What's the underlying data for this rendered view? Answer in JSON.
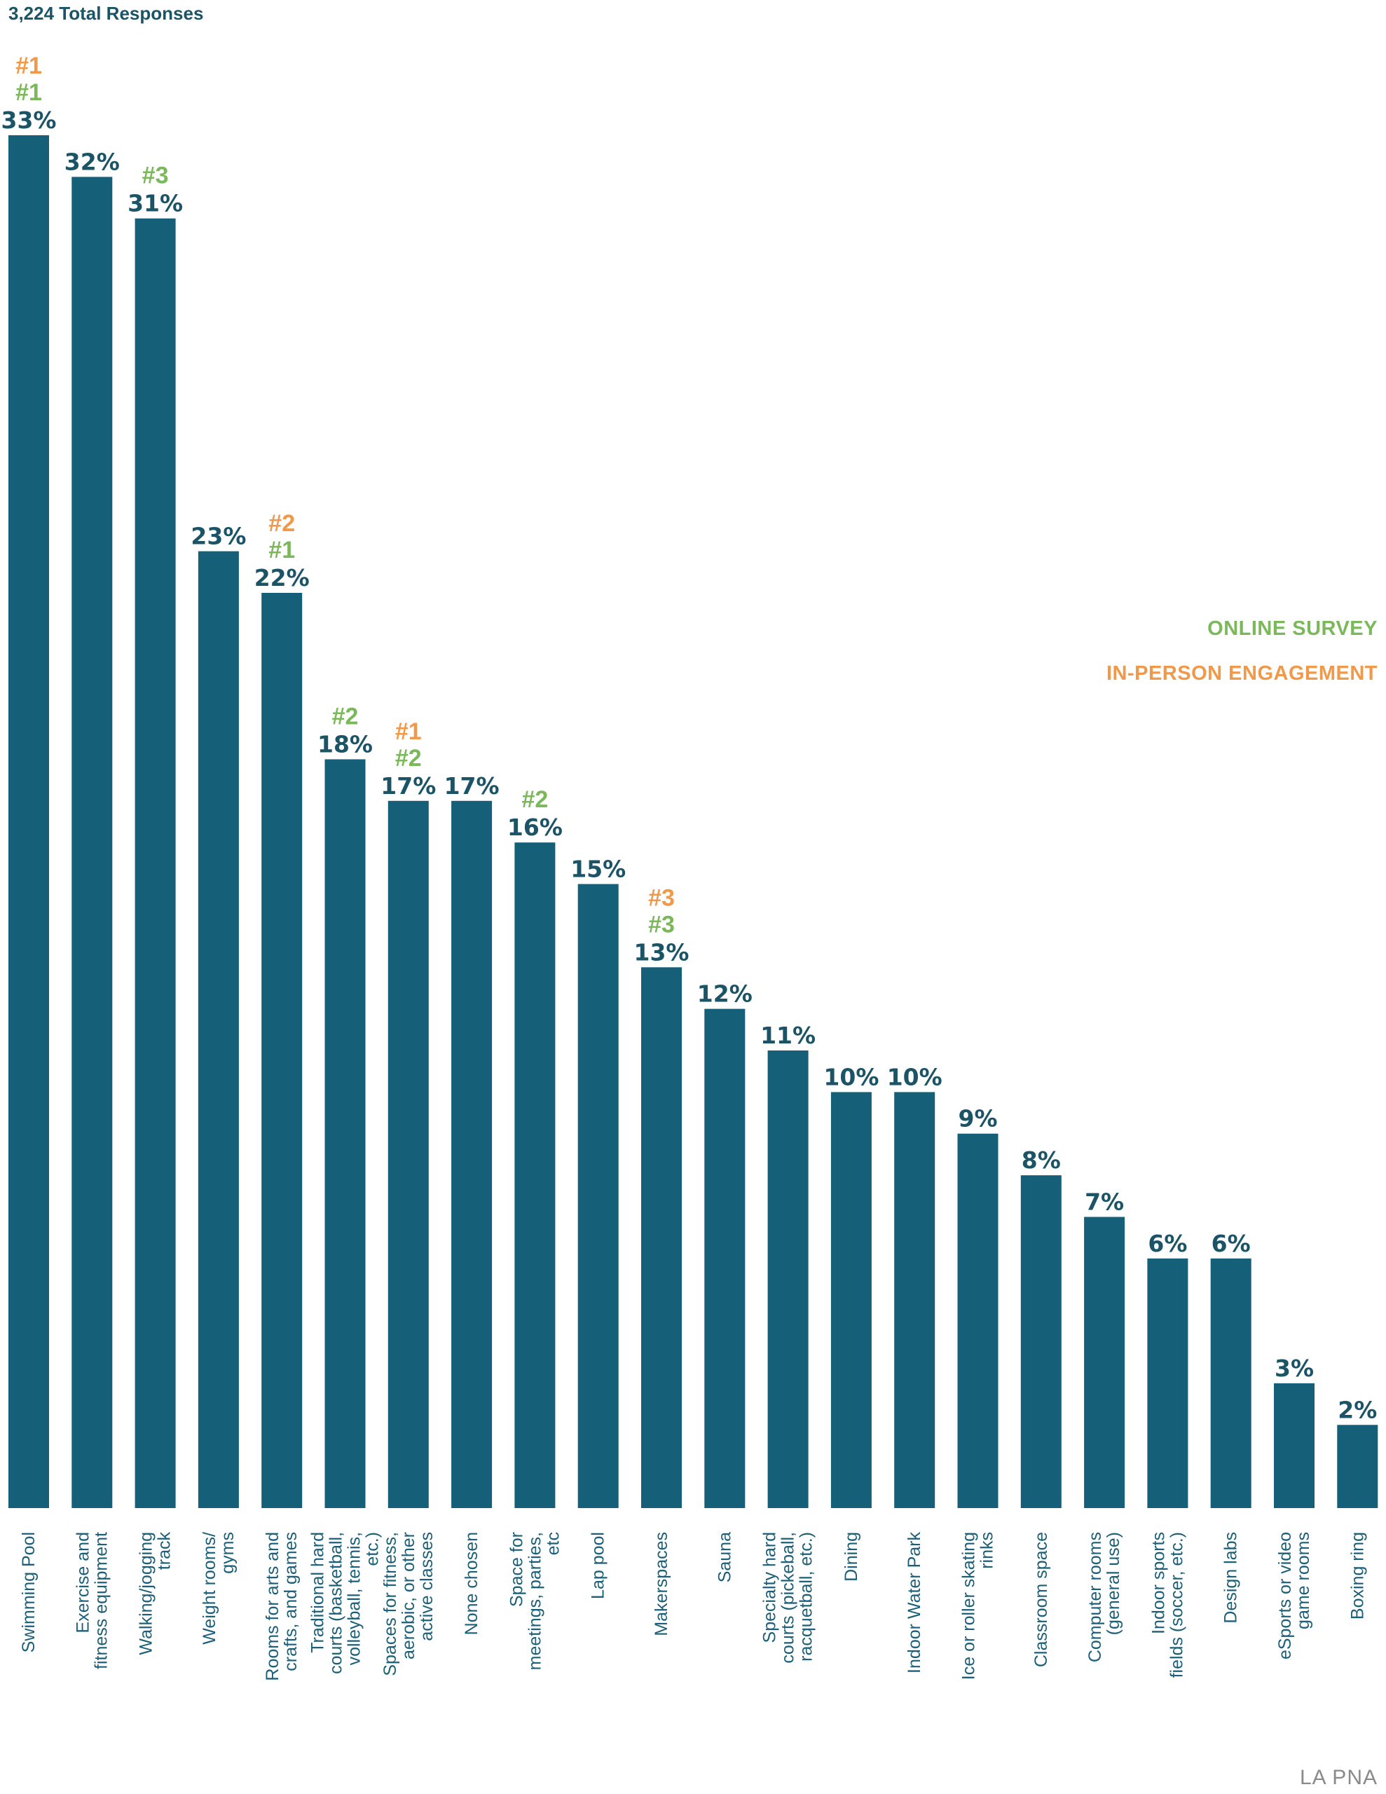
{
  "colors": {
    "bar": "#155f78",
    "value_label": "#1b5466",
    "online": "#7ab85a",
    "in_person": "#f0994a",
    "source": "#8a8a8a",
    "total": "#1b5466"
  },
  "header": {
    "total_responses": "3,224 Total Responses"
  },
  "legend": {
    "online": "ONLINE SURVEY",
    "in_person": "IN-PERSON ENGAGEMENT"
  },
  "footer": {
    "source": "LA PNA"
  },
  "chart_data": {
    "type": "bar",
    "title": "",
    "xlabel": "",
    "ylabel": "",
    "ylim": [
      0,
      33
    ],
    "categories": [
      "Swimming Pool",
      "Exercise and fitness equipment",
      "Walking/jogging track",
      "Weight rooms/ gyms",
      "Rooms for arts and crafts, and games",
      "Traditional hard courts (basketball, volleyball, tennis, etc.)",
      "Spaces for fitness, aerobic, or other active classes",
      "None chosen",
      "Space for meetings, parties, etc",
      "Lap pool",
      "Makerspaces",
      "Sauna",
      "Specialty hard courts (pickeball, racquetball, etc.)",
      "Dining",
      "Indoor Water Park",
      "Ice or roller skating rinks",
      "Classroom space",
      "Computer rooms (general use)",
      "Indoor sports fields (soccer, etc.)",
      "Design labs",
      "eSports or video game rooms",
      "Boxing ring"
    ],
    "category_lines": [
      [
        "Swimming Pool"
      ],
      [
        "Exercise and",
        "fitness equipment"
      ],
      [
        "Walking/jogging",
        "track"
      ],
      [
        "Weight rooms/",
        "gyms"
      ],
      [
        "Rooms for arts and",
        "crafts, and games"
      ],
      [
        "Traditional hard",
        "courts (basketball,",
        "volleyball, tennis,",
        "etc.)"
      ],
      [
        "Spaces for fitness,",
        "aerobic, or other",
        "active classes"
      ],
      [
        "None chosen"
      ],
      [
        "Space for",
        "meetings, parties,",
        "etc"
      ],
      [
        "Lap pool"
      ],
      [
        "Makerspaces"
      ],
      [
        "Sauna"
      ],
      [
        "Specialty hard",
        "courts (pickeball,",
        "racquetball, etc.)"
      ],
      [
        "Dining"
      ],
      [
        "Indoor Water Park"
      ],
      [
        "Ice or roller skating",
        "rinks"
      ],
      [
        "Classroom space"
      ],
      [
        "Computer rooms",
        "(general use)"
      ],
      [
        "Indoor sports",
        "fields (soccer, etc.)"
      ],
      [
        "Design labs"
      ],
      [
        "eSports or video",
        "game rooms"
      ],
      [
        "Boxing ring"
      ]
    ],
    "values": [
      33,
      32,
      31,
      23,
      22,
      18,
      17,
      17,
      16,
      15,
      13,
      12,
      11,
      10,
      10,
      9,
      8,
      7,
      6,
      6,
      3,
      2
    ],
    "labels": [
      "33%",
      "32%",
      "31%",
      "23%",
      "22%",
      "18%",
      "17%",
      "17%",
      "16%",
      "15%",
      "13%",
      "12%",
      "11%",
      "10%",
      "10%",
      "9%",
      "8%",
      "7%",
      "6%",
      "6%",
      "3%",
      "2%"
    ],
    "in_person_rank": [
      "#1",
      "",
      "",
      "",
      "#2",
      "",
      "#1",
      "",
      "",
      "",
      "#3",
      "",
      "",
      "",
      "",
      "",
      "",
      "",
      "",
      "",
      "",
      ""
    ],
    "online_rank": [
      "#1",
      "",
      "#3",
      "",
      "#1",
      "#2",
      "#2",
      "",
      "#2",
      "",
      "#3",
      "",
      "",
      "",
      "",
      "",
      "",
      "",
      "",
      "",
      "",
      ""
    ],
    "series": [
      {
        "name": "ONLINE SURVEY",
        "values": [
          "#1",
          "",
          "#3",
          "",
          "#1",
          "#2",
          "#2",
          "",
          "#2",
          "",
          "#3",
          "",
          "",
          "",
          "",
          "",
          "",
          "",
          "",
          "",
          "",
          ""
        ]
      },
      {
        "name": "IN-PERSON ENGAGEMENT",
        "values": [
          "#1",
          "",
          "",
          "",
          "#2",
          "",
          "#1",
          "",
          "",
          "",
          "#3",
          "",
          "",
          "",
          "",
          "",
          "",
          "",
          "",
          "",
          "",
          ""
        ]
      }
    ],
    "grid": false,
    "legend_position": "right"
  }
}
